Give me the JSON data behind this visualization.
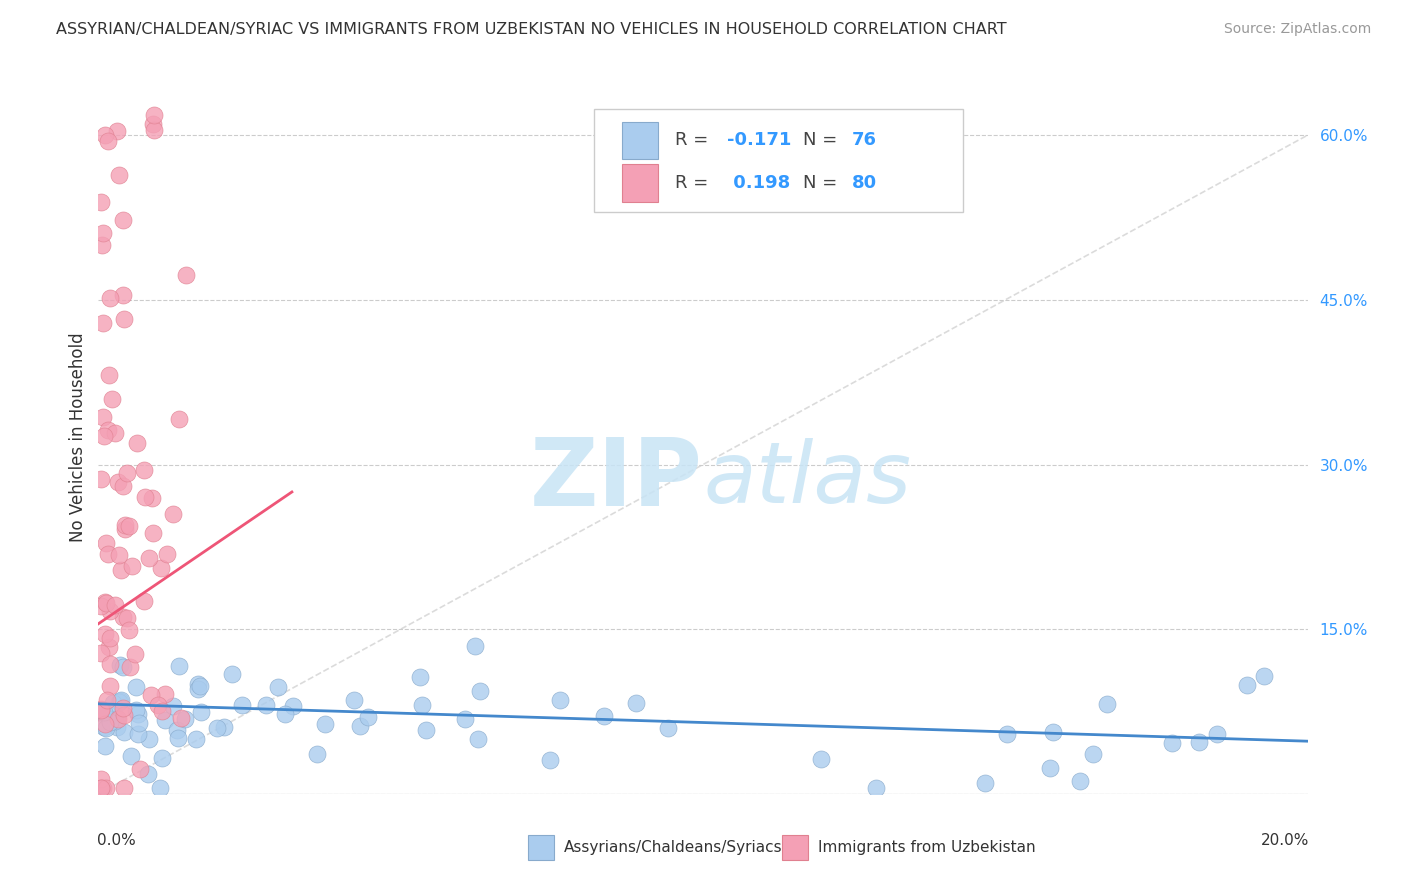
{
  "title": "ASSYRIAN/CHALDEAN/SYRIAC VS IMMIGRANTS FROM UZBEKISTAN NO VEHICLES IN HOUSEHOLD CORRELATION CHART",
  "source": "Source: ZipAtlas.com",
  "ylabel": "No Vehicles in Household",
  "xlim": [
    0.0,
    0.2
  ],
  "ylim": [
    0.0,
    0.65
  ],
  "yticks": [
    0.0,
    0.15,
    0.3,
    0.45,
    0.6
  ],
  "ytick_labels": [
    "",
    "15.0%",
    "30.0%",
    "45.0%",
    "60.0%"
  ],
  "grid_color": "#cccccc",
  "background_color": "#ffffff",
  "series1_color": "#aaccee",
  "series2_color": "#f4a0b5",
  "series1_edge": "#88aacc",
  "series2_edge": "#e08090",
  "series1_label": "Assyrians/Chaldeans/Syriacs",
  "series2_label": "Immigrants from Uzbekistan",
  "R1": -0.171,
  "N1": 76,
  "R2": 0.198,
  "N2": 80,
  "legend_color1": "#aaccee",
  "legend_color2": "#f4a0b5",
  "trend1_color": "#4488cc",
  "trend2_color": "#ee5577",
  "diag_color": "#cccccc",
  "watermark_color": "#c8e4f5",
  "title_color": "#333333",
  "source_color": "#999999",
  "right_axis_color": "#3399ff",
  "label_color": "#333333"
}
